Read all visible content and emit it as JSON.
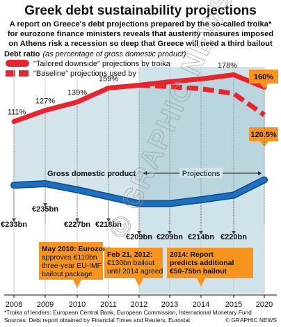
{
  "title": "Greek debt sustainability projections",
  "subtitle_lines": [
    "A report on Greece's debt projections prepared by the so-called troika*",
    "for eurozone finance ministers reveals that austerity measures imposed",
    "on Athens risk a recession so deep that Greece will need a third bailout"
  ],
  "ratio_heading": "Debt ratio",
  "ratio_note": "(as percentage of gross domestic product)",
  "gdp_heading": "Gross domestic product",
  "projections_label": "Projections",
  "callouts": [
    {
      "year": 2010,
      "lines": [
        "May 2010: Eurozone",
        "approves €110bn",
        "three-year EU-IMF",
        "bailout package"
      ]
    },
    {
      "year": 2012,
      "lines": [
        "Feb 21, 2012:",
        "€130bn bailout",
        "until 2014 agreed"
      ]
    },
    {
      "year": 2014,
      "lines": [
        "2014: Report",
        "predicts additional",
        "€50-75bn bailout"
      ]
    }
  ],
  "footnote_lines": [
    "*Troika of lenders: European Central Bank, European Commission, International Monetary Fund",
    "Sources: Debt report obtained by Financial Times and Reuters, Eurostat"
  ],
  "credit": "© GRAPHIC NEWS",
  "watermark": "© GRAPHIC NEWS",
  "colors": {
    "debt": "#e8252c",
    "gdp": "#1d6fc0",
    "projection_bg": "#cfe3ea",
    "callout": "#f7941d",
    "grid": "#cccccc"
  },
  "chart_data": [
    {
      "type": "line",
      "x": [
        2008,
        2009,
        2010,
        2011,
        2012,
        2013,
        2014,
        2015,
        2020
      ],
      "xlim": [
        2008,
        2020
      ],
      "series": [
        {
          "name": "\"Tailored downside\" projections by troika",
          "style": "solid",
          "x": [
            2008,
            2009,
            2010,
            2011,
            2012,
            2013,
            2014,
            2015,
            2020
          ],
          "values": [
            111,
            127,
            139,
            159,
            163,
            168,
            172,
            178,
            160
          ]
        },
        {
          "name": "\"Baseline\" projections used by finance ministers",
          "style": "dashed",
          "x": [
            2012,
            2013,
            2014,
            2015,
            2020
          ],
          "values": [
            163,
            161,
            158,
            151,
            120.5
          ]
        }
      ],
      "data_labels": [
        {
          "x": 2008,
          "text": "111%"
        },
        {
          "x": 2009,
          "text": "127%"
        },
        {
          "x": 2010,
          "text": "139%"
        },
        {
          "x": 2011,
          "text": "159%"
        },
        {
          "x": 2015,
          "text": "178%"
        }
      ],
      "end_labels": [
        {
          "text": "160%"
        },
        {
          "text": "120.5%"
        }
      ]
    },
    {
      "type": "line",
      "x": [
        2008,
        2009,
        2010,
        2011,
        2012,
        2013,
        2014,
        2015,
        2020
      ],
      "series": [
        {
          "name": "Gross domestic product",
          "values": [
            233,
            235,
            227,
            218,
            209,
            209,
            214,
            220,
            240
          ]
        }
      ],
      "value_labels": [
        {
          "x": 2008,
          "text": "€233bn"
        },
        {
          "x": 2009,
          "text": "€235bn"
        },
        {
          "x": 2010,
          "text": "€227bn"
        },
        {
          "x": 2011,
          "text": "€218bn"
        },
        {
          "x": 2012,
          "text": "€209bn"
        },
        {
          "x": 2013,
          "text": "€209bn"
        },
        {
          "x": 2014,
          "text": "€214bn"
        },
        {
          "x": 2015,
          "text": "€220bn"
        }
      ]
    }
  ]
}
